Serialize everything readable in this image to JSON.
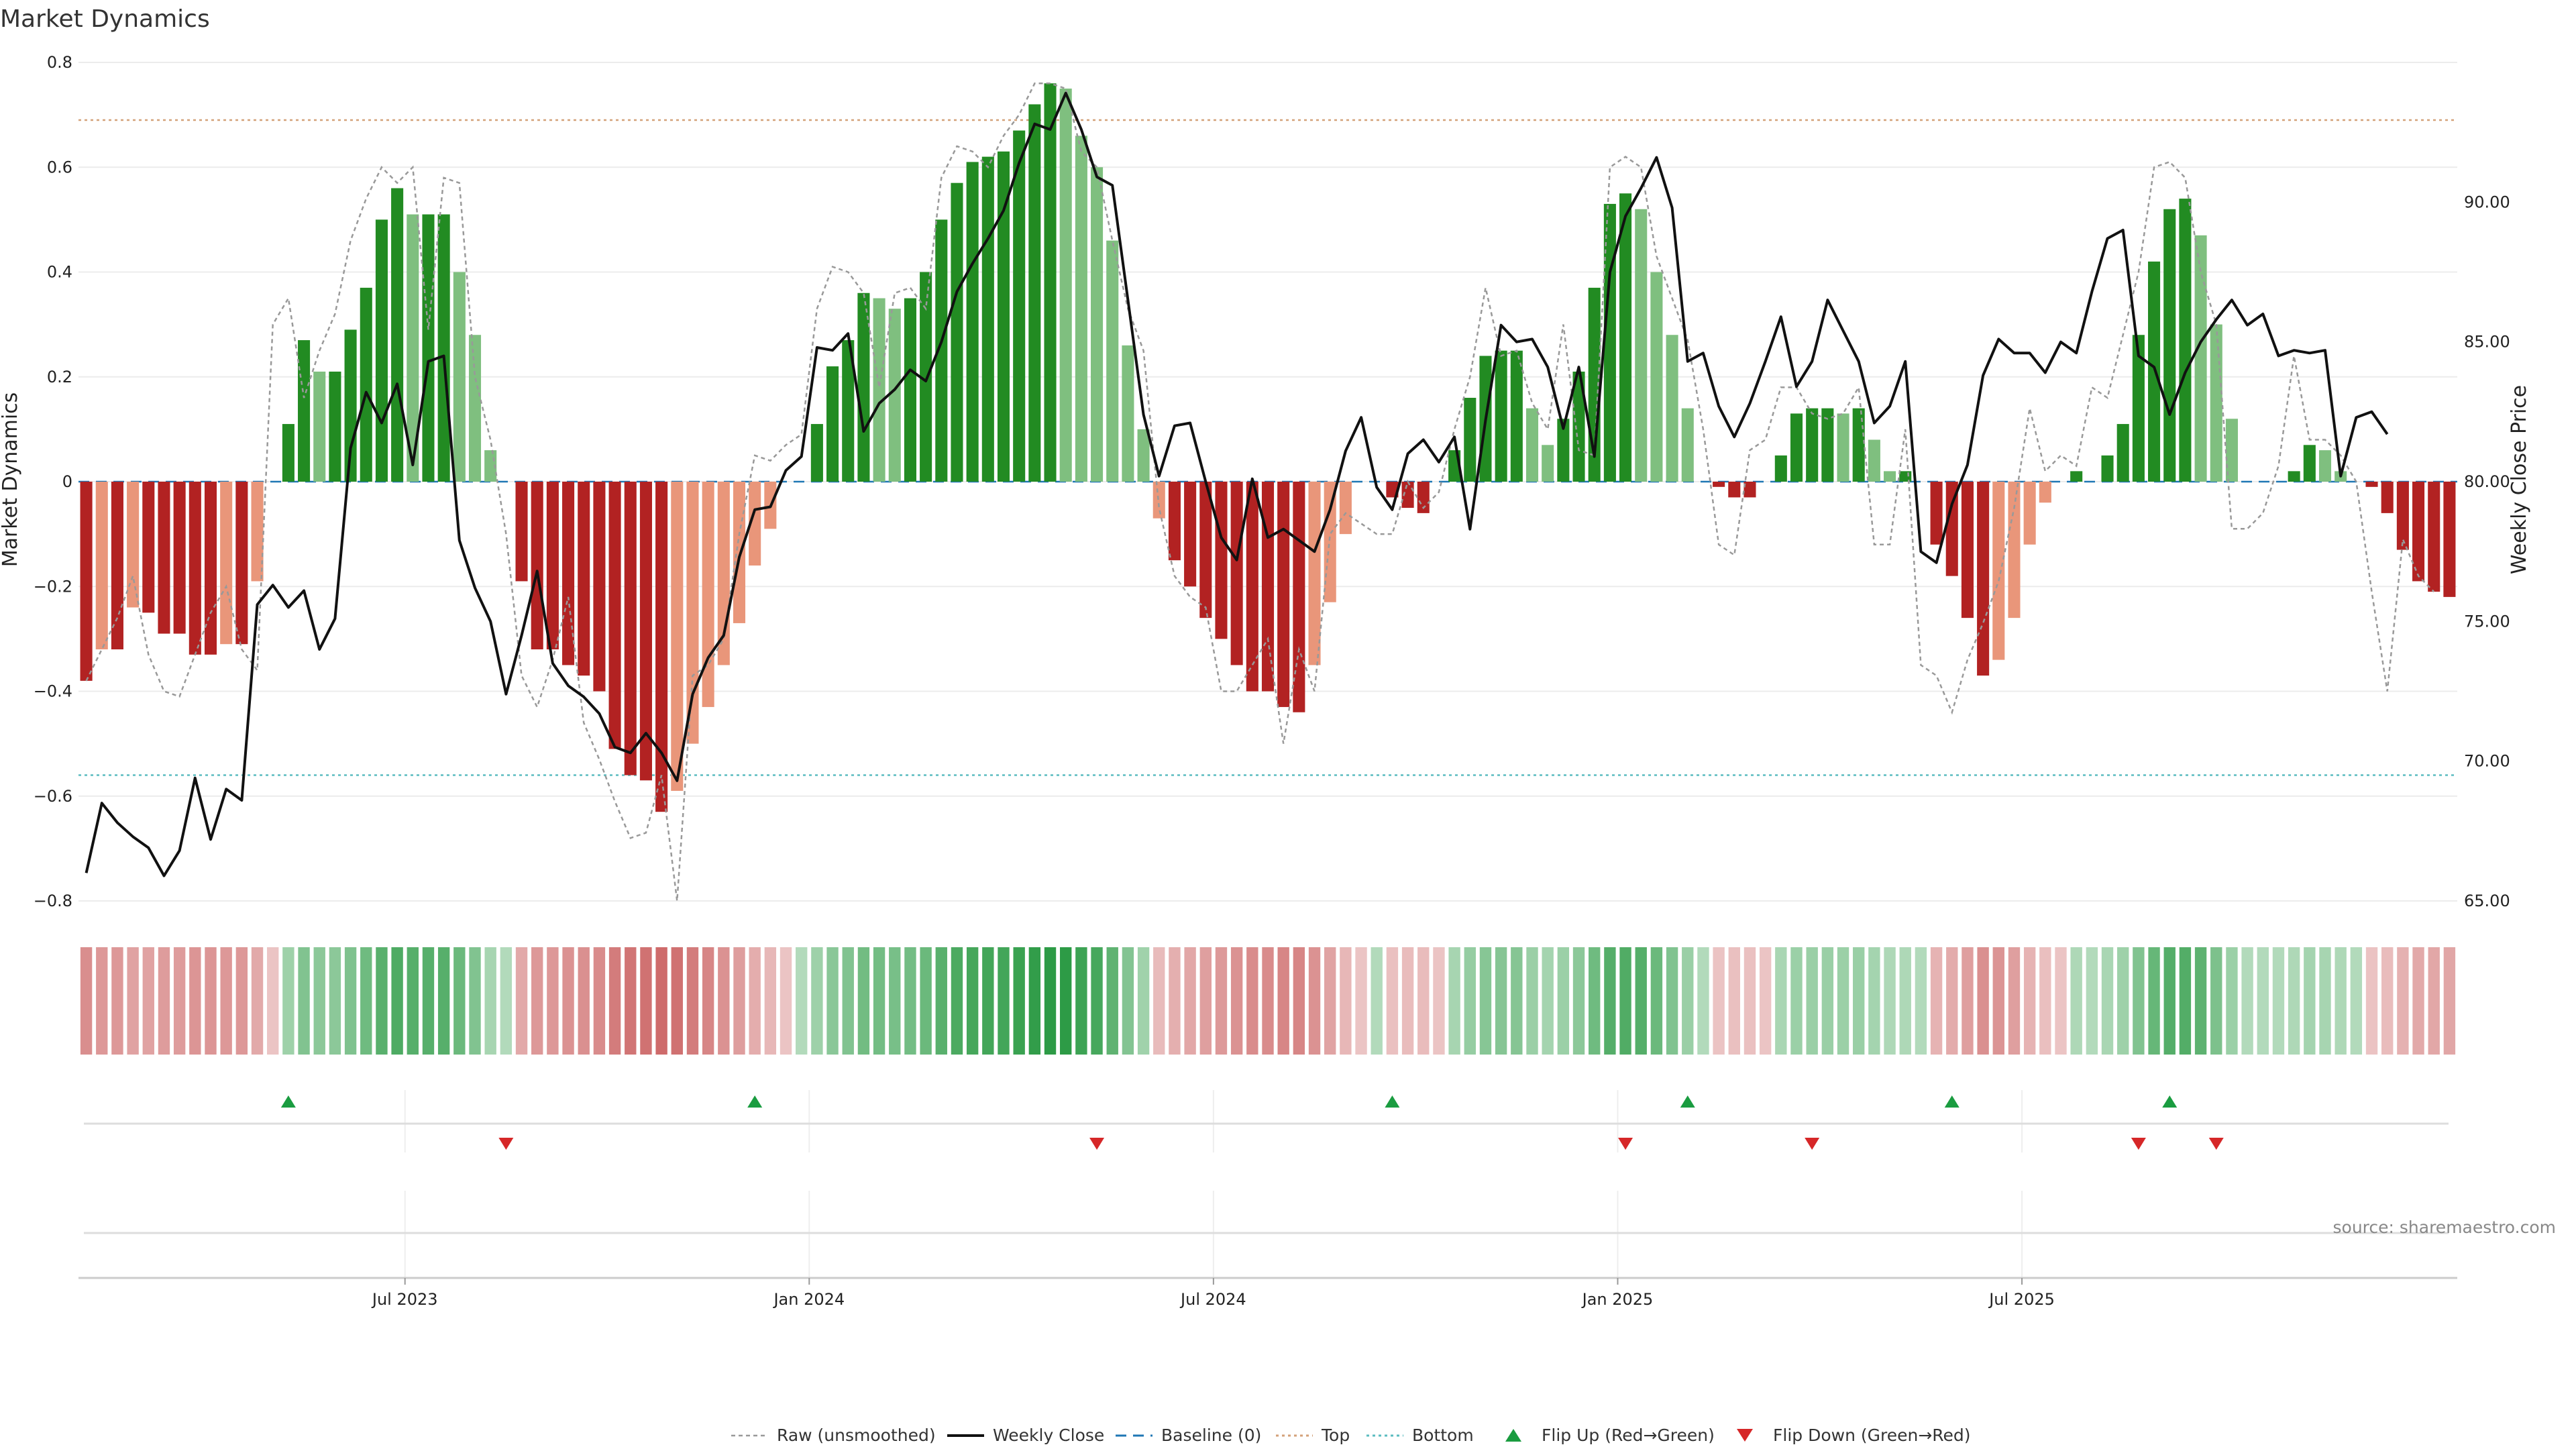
{
  "chart_data": {
    "type": "bar",
    "title": "Market Dynamics",
    "ylabel_left": "Market Dynamics",
    "ylabel_right": "Weekly Close Price",
    "source": "source: sharemaestro.com",
    "ylim_left": [
      -0.8,
      0.8
    ],
    "ylim_right": [
      65,
      95
    ],
    "yticks_left": [
      "0.8",
      "0.6",
      "0.4",
      "0.2",
      "0",
      "−0.2",
      "−0.4",
      "−0.6",
      "−0.8"
    ],
    "yticks_right": [
      "90.00",
      "85.00",
      "80.00",
      "75.00",
      "70.00",
      "65.00"
    ],
    "x_labels": [
      "Jul 2023",
      "Jan 2024",
      "Jul 2024",
      "Jan 2025",
      "Jul 2025"
    ],
    "x_label_weeks": [
      21,
      47,
      73,
      99,
      125
    ],
    "grid": true,
    "legend_position": "bottom-center",
    "top_threshold": 0.69,
    "bottom_threshold": -0.56,
    "bars": [
      -0.38,
      -0.32,
      -0.32,
      -0.24,
      -0.25,
      -0.29,
      -0.29,
      -0.33,
      -0.33,
      -0.31,
      -0.31,
      -0.19,
      0,
      0.11,
      0.27,
      0.21,
      0.21,
      0.29,
      0.37,
      0.5,
      0.56,
      0.51,
      0.51,
      0.51,
      0.4,
      0.28,
      0.06,
      0,
      -0.19,
      -0.32,
      -0.32,
      -0.35,
      -0.37,
      -0.4,
      -0.51,
      -0.56,
      -0.57,
      -0.63,
      -0.59,
      -0.5,
      -0.43,
      -0.35,
      -0.27,
      -0.16,
      -0.09,
      0,
      0,
      0.11,
      0.22,
      0.27,
      0.36,
      0.35,
      0.33,
      0.35,
      0.4,
      0.5,
      0.57,
      0.61,
      0.62,
      0.63,
      0.67,
      0.72,
      0.76,
      0.75,
      0.66,
      0.6,
      0.46,
      0.26,
      0.1,
      -0.07,
      -0.15,
      -0.2,
      -0.26,
      -0.3,
      -0.35,
      -0.4,
      -0.4,
      -0.43,
      -0.44,
      -0.35,
      -0.23,
      -0.1,
      0,
      0,
      -0.03,
      -0.05,
      -0.06,
      0,
      0.06,
      0.16,
      0.24,
      0.25,
      0.25,
      0.14,
      0.07,
      0.12,
      0.21,
      0.37,
      0.53,
      0.55,
      0.52,
      0.4,
      0.28,
      0.14,
      0,
      -0.01,
      -0.03,
      -0.03,
      0,
      0.05,
      0.13,
      0.14,
      0.14,
      0.13,
      0.14,
      0.08,
      0.02,
      0.02,
      0,
      -0.12,
      -0.18,
      -0.26,
      -0.37,
      -0.34,
      -0.26,
      -0.12,
      -0.04,
      0,
      0.02,
      0,
      0.05,
      0.11,
      0.28,
      0.42,
      0.52,
      0.54,
      0.47,
      0.3,
      0.12,
      0,
      0,
      0,
      0.02,
      0.07,
      0.06,
      0.02,
      0,
      -0.01,
      -0.06,
      -0.13,
      -0.19,
      -0.21,
      -0.22
    ],
    "raw": [
      -0.38,
      -0.32,
      -0.26,
      -0.18,
      -0.33,
      -0.4,
      -0.41,
      -0.33,
      -0.25,
      -0.2,
      -0.32,
      -0.36,
      0.3,
      0.35,
      0.16,
      0.25,
      0.32,
      0.46,
      0.54,
      0.6,
      0.57,
      0.6,
      0.29,
      0.58,
      0.57,
      0.2,
      0.08,
      -0.1,
      -0.37,
      -0.43,
      -0.34,
      -0.22,
      -0.46,
      -0.53,
      -0.61,
      -0.68,
      -0.67,
      -0.56,
      -0.8,
      -0.37,
      -0.35,
      -0.3,
      -0.1,
      0.05,
      0.04,
      0.07,
      0.09,
      0.33,
      0.41,
      0.4,
      0.36,
      0.18,
      0.36,
      0.37,
      0.33,
      0.58,
      0.64,
      0.63,
      0.6,
      0.66,
      0.7,
      0.76,
      0.76,
      0.75,
      0.63,
      0.6,
      0.46,
      0.33,
      0.25,
      -0.05,
      -0.18,
      -0.22,
      -0.24,
      -0.4,
      -0.4,
      -0.35,
      -0.3,
      -0.5,
      -0.32,
      -0.4,
      -0.1,
      -0.06,
      -0.08,
      -0.1,
      -0.1,
      0,
      -0.05,
      -0.02,
      0.1,
      0.2,
      0.37,
      0.24,
      0.25,
      0.15,
      0.1,
      0.3,
      0.06,
      0.05,
      0.6,
      0.62,
      0.6,
      0.43,
      0.35,
      0.27,
      0.1,
      -0.12,
      -0.14,
      0.06,
      0.08,
      0.18,
      0.18,
      0.13,
      0.12,
      0.13,
      0.18,
      -0.12,
      -0.12,
      0.1,
      -0.35,
      -0.37,
      -0.44,
      -0.34,
      -0.27,
      -0.19,
      -0.05,
      0.14,
      0.02,
      0.05,
      0.03,
      0.18,
      0.16,
      0.28,
      0.4,
      0.6,
      0.61,
      0.58,
      0.4,
      0.3,
      -0.09,
      -0.09,
      -0.06,
      0.03,
      0.24,
      0.08,
      0.08,
      0.05,
      0.0,
      -0.21,
      -0.4,
      -0.11,
      -0.18,
      -0.21
    ],
    "close": [
      66,
      68.5,
      67.8,
      67.3,
      66.9,
      65.9,
      66.8,
      69.4,
      67.2,
      69,
      68.6,
      75.6,
      76.3,
      75.5,
      76.1,
      74,
      75.1,
      81.2,
      83.2,
      82.1,
      83.5,
      80.6,
      84.3,
      84.5,
      77.9,
      76.2,
      75,
      72.4,
      74.5,
      76.8,
      73.5,
      72.7,
      72.3,
      71.7,
      70.5,
      70.3,
      71,
      70.3,
      69.3,
      72.4,
      73.7,
      74.5,
      77.3,
      79,
      79.1,
      80.4,
      80.9,
      84.8,
      84.7,
      85.3,
      81.8,
      82.8,
      83.3,
      84,
      83.6,
      85,
      86.8,
      87.8,
      88.7,
      89.7,
      91.4,
      92.8,
      92.6,
      93.9,
      92.6,
      90.9,
      90.6,
      86.5,
      82.4,
      80.2,
      82,
      82.1,
      80,
      78,
      77.2,
      80.1,
      78,
      78.3,
      77.9,
      77.5,
      79,
      81.1,
      82.3,
      79.8,
      79,
      81,
      81.5,
      80.7,
      81.6,
      78.3,
      82.2,
      85.6,
      85,
      85.1,
      84.1,
      81.9,
      84.1,
      80.9,
      87.5,
      89.5,
      90.5,
      91.6,
      89.8,
      84.3,
      84.6,
      82.7,
      81.6,
      82.8,
      84.3,
      85.9,
      83.4,
      84.3,
      86.5,
      85.4,
      84.3,
      82.1,
      82.7,
      84.3,
      77.5,
      77.1,
      79.2,
      80.6,
      83.8,
      85.1,
      84.6,
      84.6,
      83.9,
      85,
      84.6,
      86.8,
      88.7,
      89,
      84.5,
      84.1,
      82.4,
      83.9,
      85,
      85.8,
      86.5,
      85.6,
      86,
      84.5,
      84.7,
      84.6,
      84.7,
      80.2,
      82.3,
      82.5,
      81.7
    ],
    "flip_up_weeks": [
      13,
      43,
      84,
      103,
      120,
      134
    ],
    "flip_down_weeks": [
      27,
      65,
      99,
      111,
      132,
      137
    ],
    "legend": [
      "Raw (unsmoothed)",
      "Weekly Close",
      "Baseline (0)",
      "Top",
      "Bottom",
      "Flip Up (Red→Green)",
      "Flip Down (Green→Red)"
    ],
    "colors": {
      "green_strong": "#228b22",
      "green_light": "#7fbf7f",
      "red_strong": "#b22222",
      "red_light": "#e9967a",
      "baseline": "#1f77b4",
      "top": "#d4a27a",
      "bottom": "#5bbcc0",
      "flip_up": "#1a9c40",
      "flip_down": "#d62728",
      "close_line": "#111111",
      "raw_line": "#999999"
    }
  }
}
